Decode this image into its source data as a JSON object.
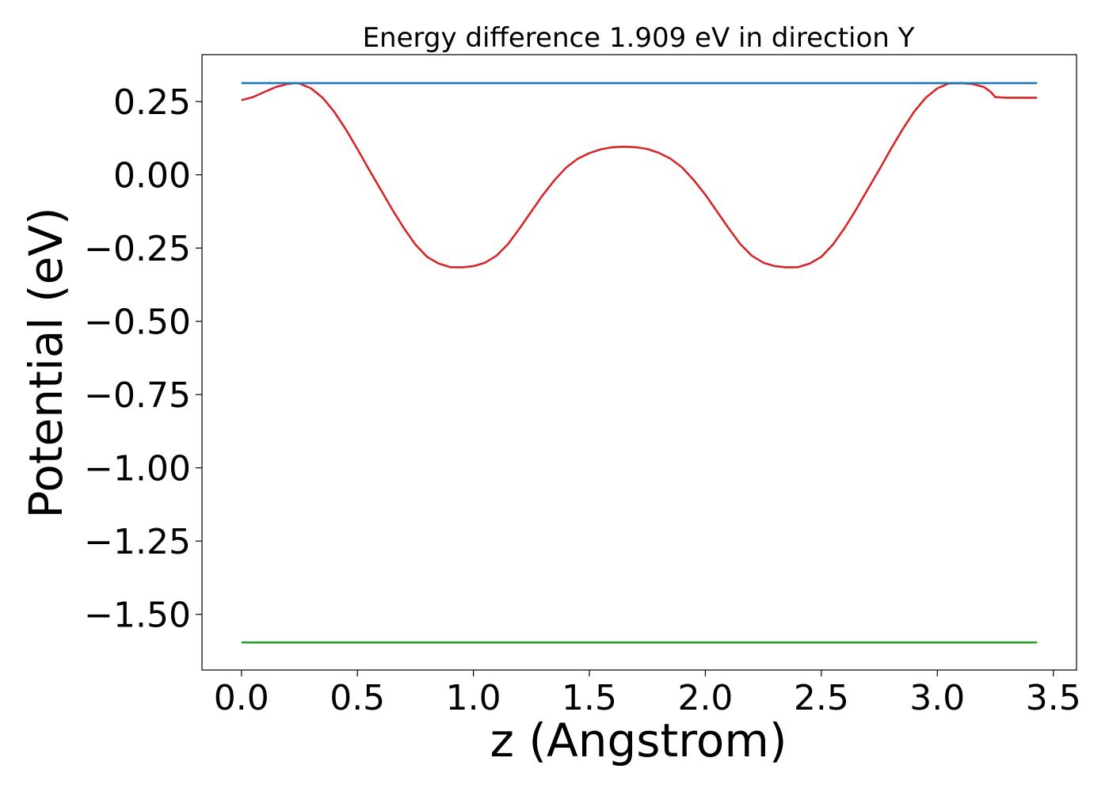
{
  "chart_data": {
    "type": "line",
    "title": "Energy difference 1.909 eV in direction Y",
    "xlabel": "z (Angstrom)",
    "ylabel": "Potential (eV)",
    "xlim": [
      -0.17,
      3.6
    ],
    "ylim": [
      -1.69,
      0.41
    ],
    "xticks": [
      0.0,
      0.5,
      1.0,
      1.5,
      2.0,
      2.5,
      3.0,
      3.5
    ],
    "xtick_labels": [
      "0.0",
      "0.5",
      "1.0",
      "1.5",
      "2.0",
      "2.5",
      "3.0",
      "3.5"
    ],
    "yticks": [
      0.25,
      0.0,
      -0.25,
      -0.5,
      -0.75,
      -1.0,
      -1.25,
      -1.5
    ],
    "ytick_labels": [
      "0.25",
      "0.00",
      "−0.25",
      "−0.50",
      "−0.75",
      "−1.00",
      "−1.25",
      "−1.50"
    ],
    "grid": false,
    "series": [
      {
        "color": "#d62728",
        "x": [
          0.0,
          0.05,
          0.1,
          0.15,
          0.2,
          0.23,
          0.25,
          0.3,
          0.35,
          0.4,
          0.45,
          0.5,
          0.55,
          0.6,
          0.65,
          0.7,
          0.75,
          0.8,
          0.85,
          0.9,
          0.95,
          1.0,
          1.05,
          1.1,
          1.15,
          1.2,
          1.25,
          1.3,
          1.35,
          1.4,
          1.45,
          1.5,
          1.55,
          1.6,
          1.65,
          1.7,
          1.75,
          1.8,
          1.85,
          1.9,
          1.95,
          2.0,
          2.05,
          2.1,
          2.15,
          2.2,
          2.25,
          2.3,
          2.35,
          2.4,
          2.45,
          2.5,
          2.55,
          2.6,
          2.65,
          2.7,
          2.75,
          2.8,
          2.85,
          2.9,
          2.95,
          3.0,
          3.05,
          3.1,
          3.15,
          3.2,
          3.23,
          3.25,
          3.3,
          3.35,
          3.43
        ],
        "y": [
          0.255,
          0.265,
          0.283,
          0.3,
          0.31,
          0.313,
          0.312,
          0.295,
          0.263,
          0.215,
          0.155,
          0.088,
          0.018,
          -0.05,
          -0.118,
          -0.182,
          -0.238,
          -0.28,
          -0.303,
          -0.315,
          -0.316,
          -0.312,
          -0.3,
          -0.276,
          -0.236,
          -0.182,
          -0.125,
          -0.068,
          -0.018,
          0.025,
          0.055,
          0.074,
          0.087,
          0.094,
          0.096,
          0.094,
          0.088,
          0.075,
          0.055,
          0.025,
          -0.018,
          -0.068,
          -0.125,
          -0.182,
          -0.236,
          -0.276,
          -0.3,
          -0.312,
          -0.316,
          -0.315,
          -0.303,
          -0.28,
          -0.238,
          -0.182,
          -0.118,
          -0.05,
          0.018,
          0.088,
          0.155,
          0.215,
          0.263,
          0.295,
          0.312,
          0.313,
          0.31,
          0.3,
          0.283,
          0.265,
          0.263,
          0.263,
          0.263
        ]
      },
      {
        "color": "#1f77b4",
        "x": [
          0.0,
          3.43
        ],
        "y": [
          0.313,
          0.313
        ]
      },
      {
        "color": "#2ca02c",
        "x": [
          0.0,
          3.43
        ],
        "y": [
          -1.596,
          -1.596
        ]
      }
    ]
  }
}
